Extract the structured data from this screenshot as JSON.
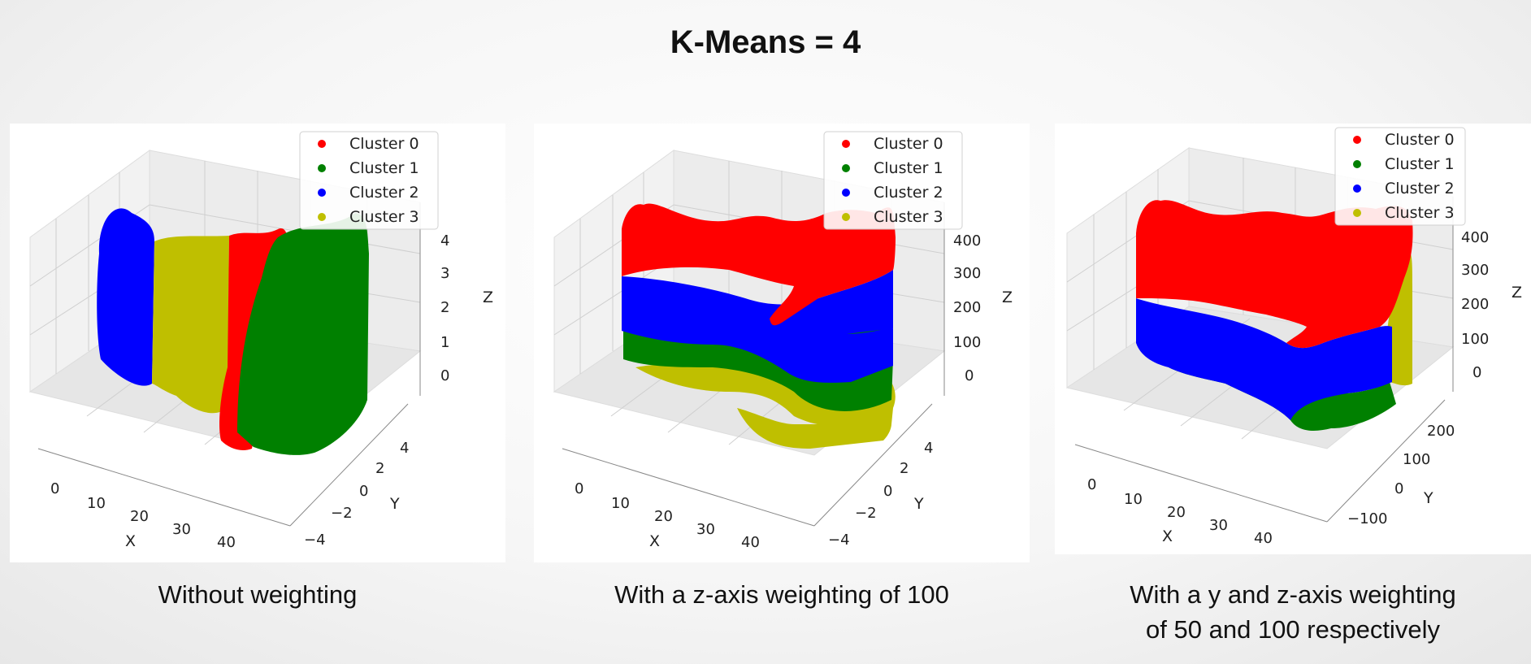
{
  "title": "K-Means = 4",
  "colors": {
    "cluster_0": "#ff0000",
    "cluster_1": "#008000",
    "cluster_2": "#0000ff",
    "cluster_3": "#bfbf00"
  },
  "chart_data": [
    {
      "type": "scatter",
      "projection": "3d",
      "caption": [
        "Without weighting"
      ],
      "xlabel": "X",
      "ylabel": "Y",
      "zlabel": "Z",
      "x_ticks": [
        "0",
        "10",
        "20",
        "30",
        "40"
      ],
      "y_ticks": [
        "−4",
        "−2",
        "0",
        "2",
        "4"
      ],
      "z_ticks": [
        "0",
        "1",
        "2",
        "3",
        "4"
      ],
      "xlim": [
        -5,
        45
      ],
      "ylim": [
        -5,
        5
      ],
      "zlim": [
        -0.5,
        4.5
      ],
      "legend": {
        "placement": "top-right",
        "entries": [
          "Cluster 0",
          "Cluster 1",
          "Cluster 2",
          "Cluster 3"
        ]
      },
      "series": [
        {
          "name": "Cluster 2",
          "color": "#0000ff",
          "x_range": [
            3,
            12
          ],
          "description": "x-band"
        },
        {
          "name": "Cluster 3",
          "color": "#bfbf00",
          "x_range": [
            12,
            21
          ]
        },
        {
          "name": "Cluster 0",
          "color": "#ff0000",
          "x_range": [
            21,
            27
          ]
        },
        {
          "name": "Cluster 1",
          "color": "#008000",
          "x_range": [
            27,
            40
          ]
        }
      ]
    },
    {
      "type": "scatter",
      "projection": "3d",
      "caption": [
        "With a z-axis weighting of 100"
      ],
      "xlabel": "X",
      "ylabel": "Y",
      "zlabel": "Z",
      "x_ticks": [
        "0",
        "10",
        "20",
        "30",
        "40"
      ],
      "y_ticks": [
        "−4",
        "−2",
        "0",
        "2",
        "4"
      ],
      "z_ticks": [
        "0",
        "100",
        "200",
        "300",
        "400"
      ],
      "xlim": [
        -5,
        45
      ],
      "ylim": [
        -5,
        5
      ],
      "zlim": [
        -50,
        450
      ],
      "legend": {
        "placement": "top-right",
        "entries": [
          "Cluster 0",
          "Cluster 1",
          "Cluster 2",
          "Cluster 3"
        ]
      },
      "series": [
        {
          "name": "Cluster 0",
          "color": "#ff0000",
          "z_range": [
            200,
            400
          ]
        },
        {
          "name": "Cluster 2",
          "color": "#0000ff",
          "z_range": [
            100,
            200
          ]
        },
        {
          "name": "Cluster 1",
          "color": "#008000",
          "z_range": [
            0,
            100
          ]
        },
        {
          "name": "Cluster 3",
          "color": "#bfbf00",
          "z_range": [
            -50,
            0
          ]
        }
      ]
    },
    {
      "type": "scatter",
      "projection": "3d",
      "caption": [
        "With a y and z-axis weighting",
        "of 50 and 100 respectively"
      ],
      "xlabel": "X",
      "ylabel": "Y",
      "zlabel": "Z",
      "x_ticks": [
        "0",
        "10",
        "20",
        "30",
        "40"
      ],
      "y_ticks": [
        "−100",
        "0",
        "100",
        "200"
      ],
      "z_ticks": [
        "0",
        "100",
        "200",
        "300",
        "400"
      ],
      "xlim": [
        -5,
        45
      ],
      "ylim": [
        -150,
        250
      ],
      "zlim": [
        -50,
        450
      ],
      "legend": {
        "placement": "top-right",
        "entries": [
          "Cluster 0",
          "Cluster 1",
          "Cluster 2",
          "Cluster 3"
        ]
      },
      "series": [
        {
          "name": "Cluster 0",
          "color": "#ff0000",
          "z_range": [
            180,
            400
          ]
        },
        {
          "name": "Cluster 2",
          "color": "#0000ff",
          "z_range": [
            50,
            180
          ]
        },
        {
          "name": "Cluster 1",
          "color": "#008000",
          "z_range": [
            0,
            50
          ]
        },
        {
          "name": "Cluster 3",
          "color": "#bfbf00",
          "y_range": [
            150,
            250
          ]
        }
      ]
    }
  ]
}
